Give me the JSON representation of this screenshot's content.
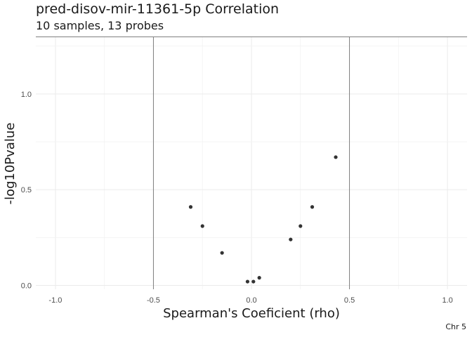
{
  "chart_data": {
    "type": "scatter",
    "title": "pred-disov-mir-11361-5p Correlation",
    "subtitle": "10 samples, 13 probes",
    "xlabel": "Spearman's Coeficient (rho)",
    "ylabel": "-log10Pvalue",
    "caption": "Chr 5",
    "xlim": [
      -1.1,
      1.1
    ],
    "ylim": [
      -0.02,
      1.3
    ],
    "x_ticks": [
      {
        "value": -1.0,
        "label": "-1.0"
      },
      {
        "value": -0.5,
        "label": "-0.5"
      },
      {
        "value": 0.0,
        "label": "0.0"
      },
      {
        "value": 0.5,
        "label": "0.5"
      },
      {
        "value": 1.0,
        "label": "1.0"
      }
    ],
    "y_ticks": [
      {
        "value": 0.0,
        "label": "0.0"
      },
      {
        "value": 0.5,
        "label": "0.5"
      },
      {
        "value": 1.0,
        "label": "1.0"
      }
    ],
    "reference_lines": {
      "vertical": [
        -0.5,
        0.5
      ],
      "horizontal": [
        1.3
      ]
    },
    "grid": true,
    "point_color": "#333333",
    "points": [
      {
        "x": -0.31,
        "y": 0.41
      },
      {
        "x": -0.25,
        "y": 0.31
      },
      {
        "x": -0.15,
        "y": 0.17
      },
      {
        "x": -0.02,
        "y": 0.02
      },
      {
        "x": 0.01,
        "y": 0.02
      },
      {
        "x": 0.04,
        "y": 0.04
      },
      {
        "x": 0.2,
        "y": 0.24
      },
      {
        "x": 0.25,
        "y": 0.31
      },
      {
        "x": 0.31,
        "y": 0.41
      },
      {
        "x": 0.43,
        "y": 0.67
      }
    ]
  }
}
